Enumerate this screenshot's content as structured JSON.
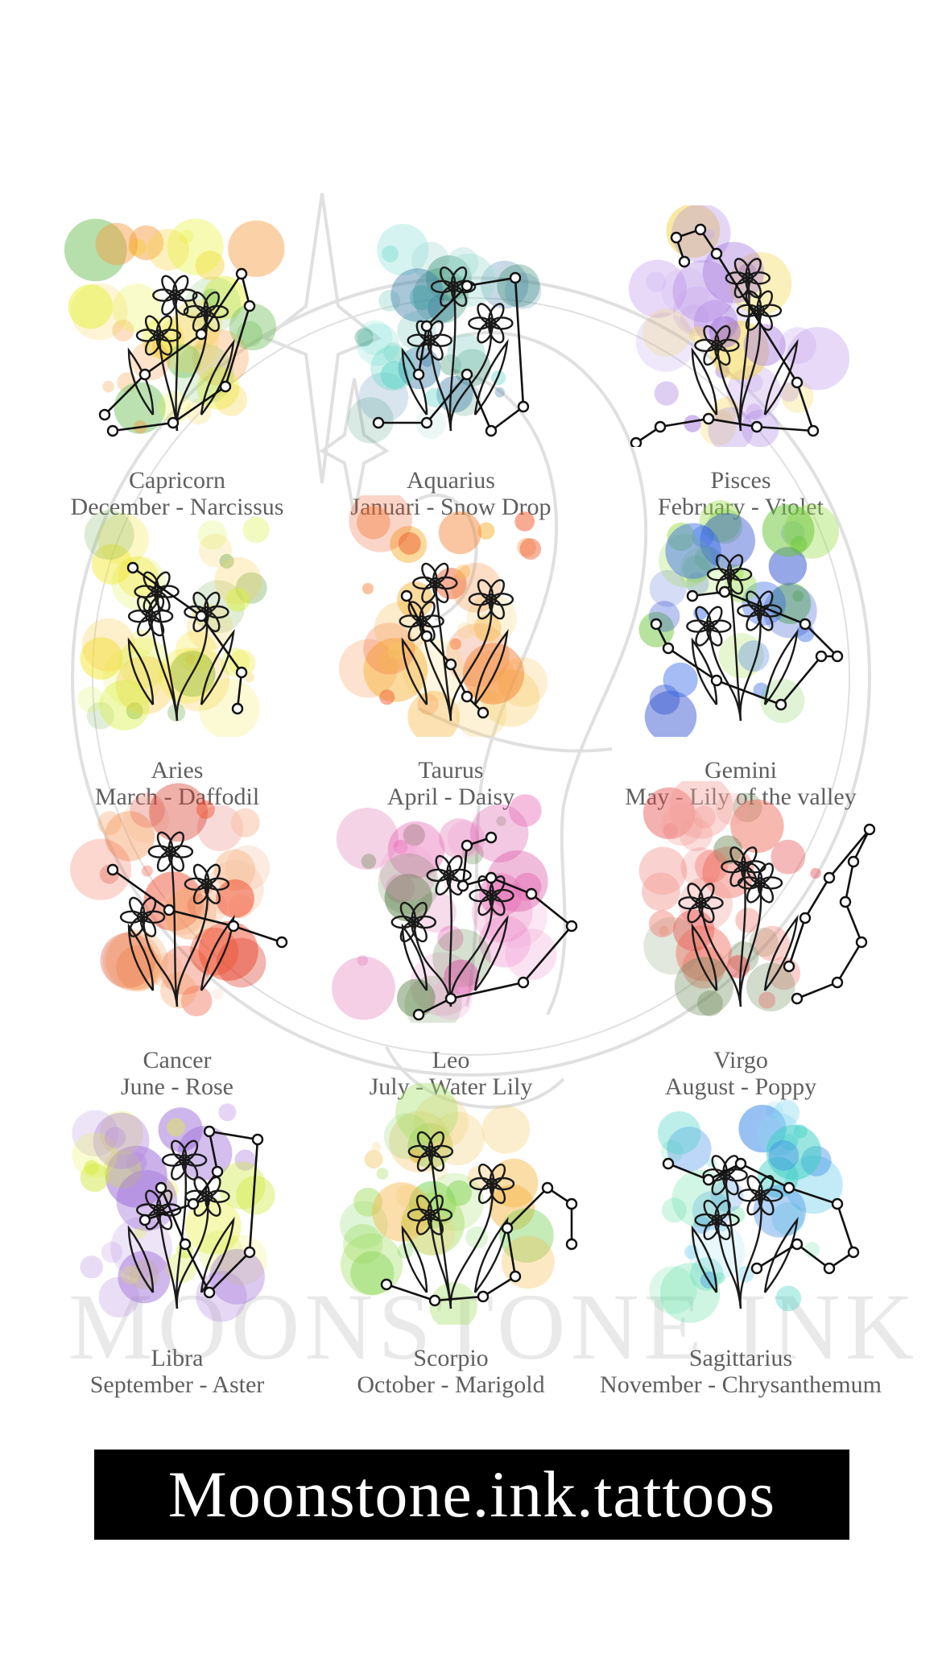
{
  "watermark": {
    "brand": "MOONSTONE INK"
  },
  "banner": {
    "handle": "Moonstone.ink.tattoos"
  },
  "signs": [
    {
      "name": "Capricorn",
      "detail": "December - Narcissus",
      "flower": "narcissus",
      "colors": [
        "#f6d23a",
        "#f79a3c",
        "#e8f23a",
        "#6fbf5a"
      ]
    },
    {
      "name": "Aquarius",
      "detail": "Januari - Snow Drop",
      "flower": "snowdrop",
      "colors": [
        "#3e7fa8",
        "#5ed6c8",
        "#2e8b6b",
        "#9fd9d0"
      ]
    },
    {
      "name": "Pisces",
      "detail": "February - Violet",
      "flower": "violet",
      "colors": [
        "#9b6ad9",
        "#c9a6ef",
        "#f2d54a",
        "#b08ae6"
      ]
    },
    {
      "name": "Aries",
      "detail": "March - Daffodil",
      "flower": "daffodil",
      "colors": [
        "#f3e83a",
        "#d8f03a",
        "#6fa84a",
        "#f6c83a"
      ]
    },
    {
      "name": "Taurus",
      "detail": "April - Daisy",
      "flower": "daisy",
      "colors": [
        "#f5802e",
        "#f6b43a",
        "#ef5a2a",
        "#f9d06a"
      ]
    },
    {
      "name": "Gemini",
      "detail": "May - Lily of the valley",
      "flower": "lily-of-the-valley",
      "colors": [
        "#6cc63a",
        "#3a6ee8",
        "#9ade4a",
        "#2e4fd0"
      ]
    },
    {
      "name": "Cancer",
      "detail": "June - Rose",
      "flower": "rose",
      "colors": [
        "#ef4a2a",
        "#f59a5a",
        "#d83a2a",
        "#f7c0a0"
      ]
    },
    {
      "name": "Leo",
      "detail": "July - Water Lily",
      "flower": "water-lily",
      "colors": [
        "#e96fb8",
        "#4f7a3a",
        "#f3a6d8",
        "#d84fa0"
      ]
    },
    {
      "name": "Virgo",
      "detail": "August - Poppy",
      "flower": "poppy",
      "colors": [
        "#ef6a5a",
        "#f3a09a",
        "#6f8a5a",
        "#e84a4a"
      ]
    },
    {
      "name": "Libra",
      "detail": "September - Aster",
      "flower": "aster",
      "colors": [
        "#b48ae0",
        "#e6f03a",
        "#9a6ad6",
        "#cfe83a"
      ]
    },
    {
      "name": "Scorpio",
      "detail": "October - Marigold",
      "flower": "marigold",
      "colors": [
        "#6fd04a",
        "#f6b84a",
        "#a8e06a",
        "#f3d07a"
      ]
    },
    {
      "name": "Sagittarius",
      "detail": "November - Chrysanthemum",
      "flower": "chrysanthemum",
      "colors": [
        "#3acfc0",
        "#3a8ae8",
        "#8ad8f0",
        "#5fe0a0"
      ]
    }
  ]
}
